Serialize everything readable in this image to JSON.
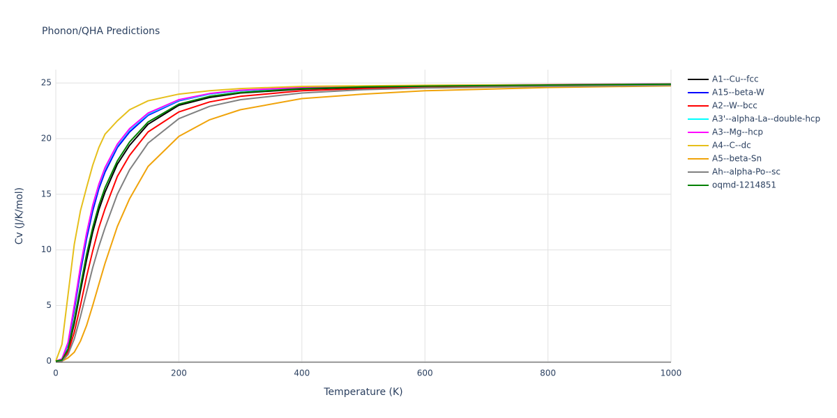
{
  "chart_data": {
    "type": "line",
    "title": "Phonon/QHA Predictions",
    "x_label": "Temperature (K)",
    "y_label": "Cv (J/K/mol)",
    "xlim": [
      0,
      1000
    ],
    "ylim": [
      -0.1,
      26.2
    ],
    "xticks": [
      0,
      200,
      400,
      600,
      800,
      1000
    ],
    "yticks": [
      0,
      5,
      10,
      15,
      20,
      25
    ],
    "grid": true,
    "x": [
      0,
      10,
      20,
      30,
      40,
      50,
      60,
      70,
      80,
      100,
      120,
      150,
      200,
      250,
      300,
      400,
      500,
      600,
      800,
      1000
    ],
    "series": [
      {
        "name": "A1--Cu--fcc",
        "color": "#000000",
        "values": [
          0,
          0.1,
          1,
          3.4,
          6.3,
          9.1,
          11.6,
          13.6,
          15.2,
          17.7,
          19.4,
          21.3,
          23.0,
          23.7,
          24.1,
          24.45,
          24.6,
          24.7,
          24.8,
          24.88
        ]
      },
      {
        "name": "A15--beta-W",
        "color": "#0000ff",
        "values": [
          0,
          0.2,
          1.5,
          4.6,
          8,
          11,
          13.5,
          15.5,
          17,
          19.2,
          20.6,
          22.1,
          23.4,
          24.0,
          24.3,
          24.55,
          24.7,
          24.75,
          24.85,
          24.9
        ]
      },
      {
        "name": "A2--W--bcc",
        "color": "#ff0000",
        "values": [
          0,
          0,
          0.8,
          2.6,
          5,
          7.6,
          9.9,
          12,
          13.7,
          16.6,
          18.5,
          20.6,
          22.4,
          23.3,
          23.8,
          24.3,
          24.5,
          24.6,
          24.75,
          24.85
        ]
      },
      {
        "name": "A3'--alpha-La--double-hcp",
        "color": "#00ffff",
        "values": [
          0,
          0.2,
          1.6,
          4.9,
          8.4,
          11.4,
          13.9,
          15.8,
          17.3,
          19.4,
          20.8,
          22.2,
          23.45,
          24.0,
          24.3,
          24.58,
          24.7,
          24.77,
          24.85,
          24.91
        ]
      },
      {
        "name": "A3--Mg--hcp",
        "color": "#ff00ff",
        "values": [
          0,
          0.2,
          1.7,
          5,
          8.5,
          11.5,
          14,
          15.9,
          17.4,
          19.5,
          20.9,
          22.3,
          23.5,
          24.05,
          24.35,
          24.6,
          24.72,
          24.78,
          24.86,
          24.92
        ]
      },
      {
        "name": "A4--C--dc",
        "color": "#e6bf1a",
        "values": [
          0,
          1.5,
          6,
          10.5,
          13.5,
          15.6,
          17.6,
          19.2,
          20.4,
          21.6,
          22.6,
          23.4,
          24.0,
          24.3,
          24.5,
          24.7,
          24.75,
          24.8,
          24.85,
          24.9
        ]
      },
      {
        "name": "A5--beta-Sn",
        "color": "#f0a30a",
        "values": [
          0,
          0,
          0.3,
          0.8,
          1.8,
          3.2,
          5,
          6.9,
          8.8,
          12.1,
          14.6,
          17.5,
          20.2,
          21.7,
          22.6,
          23.6,
          24.0,
          24.3,
          24.6,
          24.75
        ]
      },
      {
        "name": "Ah--alpha-Po--sc",
        "color": "#808080",
        "values": [
          0,
          0,
          0.6,
          2,
          4,
          6.2,
          8.4,
          10.3,
          12,
          15,
          17.2,
          19.6,
          21.8,
          22.9,
          23.5,
          24.1,
          24.4,
          24.55,
          24.7,
          24.8
        ]
      },
      {
        "name": "oqmd-1214851",
        "color": "#008000",
        "values": [
          0,
          0.1,
          1.1,
          3.7,
          6.7,
          9.6,
          12,
          14,
          15.6,
          18,
          19.7,
          21.5,
          23.1,
          23.8,
          24.15,
          24.5,
          24.65,
          24.72,
          24.82,
          24.9
        ]
      }
    ]
  }
}
